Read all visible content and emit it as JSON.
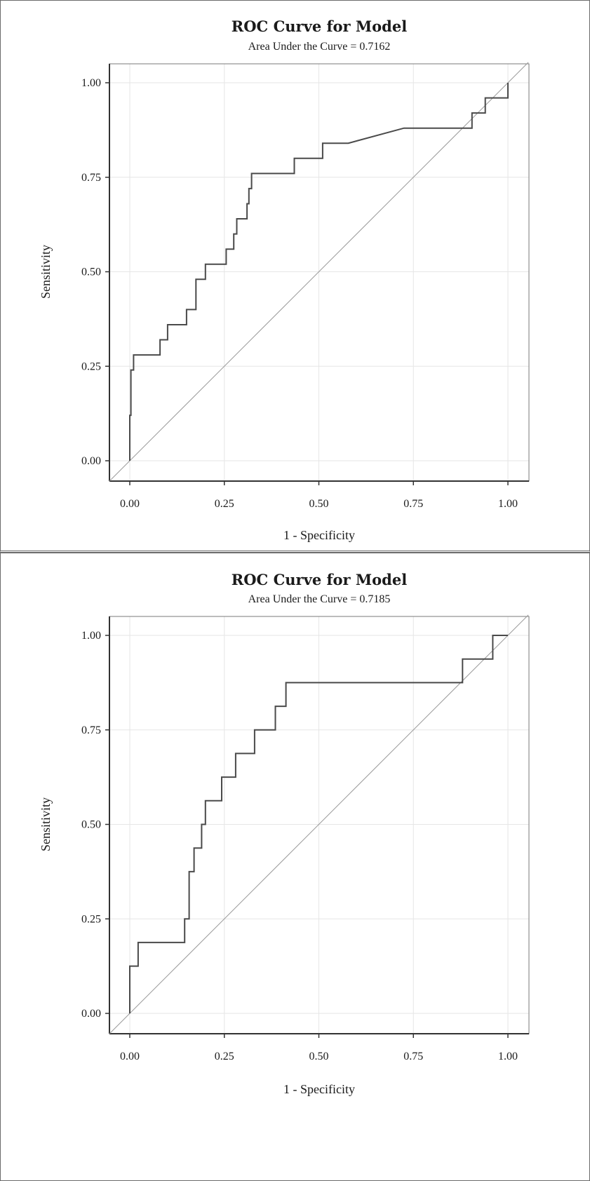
{
  "chart_data": [
    {
      "type": "line",
      "title": "ROC Curve for Model",
      "subtitle": "Area Under the Curve = 0.7162",
      "xlabel": "1 - Specificity",
      "ylabel": "Sensitivity",
      "xlim": [
        0,
        1
      ],
      "ylim": [
        0,
        1
      ],
      "xticks": [
        "0.00",
        "0.25",
        "0.50",
        "0.75",
        "1.00"
      ],
      "yticks": [
        "0.00",
        "0.25",
        "0.50",
        "0.75",
        "1.00"
      ],
      "grid": true,
      "reference_line": "diagonal",
      "series": [
        {
          "points": [
            [
              0.0,
              0.0
            ],
            [
              0.0,
              0.12
            ],
            [
              0.003,
              0.12
            ],
            [
              0.003,
              0.24
            ],
            [
              0.01,
              0.24
            ],
            [
              0.01,
              0.28
            ],
            [
              0.08,
              0.28
            ],
            [
              0.08,
              0.32
            ],
            [
              0.1,
              0.32
            ],
            [
              0.1,
              0.36
            ],
            [
              0.15,
              0.36
            ],
            [
              0.15,
              0.4
            ],
            [
              0.175,
              0.4
            ],
            [
              0.175,
              0.48
            ],
            [
              0.2,
              0.48
            ],
            [
              0.2,
              0.52
            ],
            [
              0.255,
              0.52
            ],
            [
              0.255,
              0.56
            ],
            [
              0.275,
              0.56
            ],
            [
              0.275,
              0.6
            ],
            [
              0.283,
              0.6
            ],
            [
              0.283,
              0.64
            ],
            [
              0.31,
              0.64
            ],
            [
              0.31,
              0.68
            ],
            [
              0.315,
              0.68
            ],
            [
              0.315,
              0.72
            ],
            [
              0.322,
              0.72
            ],
            [
              0.322,
              0.76
            ],
            [
              0.435,
              0.76
            ],
            [
              0.435,
              0.8
            ],
            [
              0.51,
              0.8
            ],
            [
              0.51,
              0.84
            ],
            [
              0.578,
              0.84
            ],
            [
              0.725,
              0.88
            ],
            [
              0.905,
              0.88
            ],
            [
              0.905,
              0.92
            ],
            [
              0.94,
              0.92
            ],
            [
              0.94,
              0.96
            ],
            [
              1.0,
              0.96
            ],
            [
              1.0,
              1.0
            ]
          ]
        }
      ]
    },
    {
      "type": "line",
      "title": "ROC Curve for Model",
      "subtitle": "Area Under the Curve = 0.7185",
      "xlabel": "1 - Specificity",
      "ylabel": "Sensitivity",
      "xlim": [
        0,
        1
      ],
      "ylim": [
        0,
        1
      ],
      "xticks": [
        "0.00",
        "0.25",
        "0.50",
        "0.75",
        "1.00"
      ],
      "yticks": [
        "0.00",
        "0.25",
        "0.50",
        "0.75",
        "1.00"
      ],
      "grid": true,
      "reference_line": "diagonal",
      "series": [
        {
          "points": [
            [
              0.0,
              0.0
            ],
            [
              0.0,
              0.125
            ],
            [
              0.022,
              0.125
            ],
            [
              0.022,
              0.1875
            ],
            [
              0.145,
              0.1875
            ],
            [
              0.145,
              0.25
            ],
            [
              0.157,
              0.25
            ],
            [
              0.157,
              0.375
            ],
            [
              0.17,
              0.375
            ],
            [
              0.17,
              0.4375
            ],
            [
              0.19,
              0.4375
            ],
            [
              0.19,
              0.5
            ],
            [
              0.2,
              0.5
            ],
            [
              0.2,
              0.5625
            ],
            [
              0.243,
              0.5625
            ],
            [
              0.243,
              0.625
            ],
            [
              0.28,
              0.625
            ],
            [
              0.28,
              0.6875
            ],
            [
              0.33,
              0.6875
            ],
            [
              0.33,
              0.75
            ],
            [
              0.385,
              0.75
            ],
            [
              0.385,
              0.8125
            ],
            [
              0.413,
              0.8125
            ],
            [
              0.413,
              0.875
            ],
            [
              0.88,
              0.875
            ],
            [
              0.88,
              0.9375
            ],
            [
              0.96,
              0.9375
            ],
            [
              0.96,
              1.0
            ],
            [
              1.0,
              1.0
            ]
          ]
        }
      ]
    }
  ]
}
